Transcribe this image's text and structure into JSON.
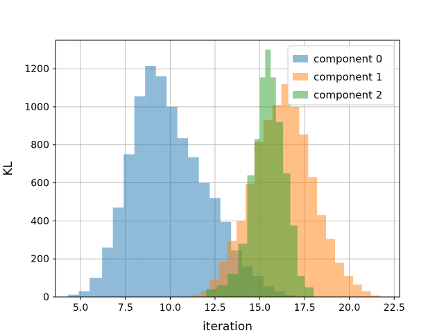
{
  "chart_data": {
    "type": "histogram",
    "xlabel": "iteration",
    "ylabel": "KL",
    "xlim": [
      3.6,
      22.8
    ],
    "ylim": [
      0,
      1350
    ],
    "xticks": [
      5.0,
      7.5,
      10.0,
      12.5,
      15.0,
      17.5,
      20.0,
      22.5
    ],
    "xtick_labels": [
      "5.0",
      "7.5",
      "10.0",
      "12.5",
      "15.0",
      "17.5",
      "20.0",
      "22.5"
    ],
    "yticks": [
      0,
      200,
      400,
      600,
      800,
      1000,
      1200
    ],
    "ytick_labels": [
      "0",
      "200",
      "400",
      "600",
      "800",
      "1000",
      "1200"
    ],
    "grid": true,
    "legend_position": "top-right",
    "series": [
      {
        "name": "component 0",
        "color": "#1f77b4",
        "bins": [
          4.3,
          4.9,
          5.5,
          6.2,
          6.8,
          7.4,
          8.0,
          8.6,
          9.2,
          9.8,
          10.4,
          11.0,
          11.6,
          12.2,
          12.8,
          13.4,
          14.0,
          14.6,
          15.2,
          15.8,
          16.4,
          17.0
        ],
        "counts": [
          12,
          30,
          100,
          260,
          470,
          750,
          1055,
          1215,
          1160,
          1000,
          835,
          735,
          600,
          520,
          395,
          245,
          160,
          110,
          55,
          30,
          10
        ]
      },
      {
        "name": "component 1",
        "color": "#ff7f0e",
        "bins": [
          11.2,
          11.7,
          12.2,
          12.7,
          13.2,
          13.7,
          14.2,
          14.7,
          15.2,
          15.7,
          16.2,
          16.7,
          17.2,
          17.7,
          18.2,
          18.7,
          19.2,
          19.7,
          20.2,
          20.7,
          21.2,
          21.7
        ],
        "counts": [
          10,
          30,
          90,
          185,
          295,
          400,
          595,
          815,
          930,
          1010,
          1120,
          1000,
          855,
          630,
          430,
          305,
          180,
          110,
          65,
          30,
          8
        ]
      },
      {
        "name": "component 2",
        "color": "#2ca02c",
        "bins": [
          12.0,
          12.6,
          13.2,
          13.8,
          14.3,
          14.7,
          15.0,
          15.3,
          15.6,
          15.9,
          16.3,
          16.7,
          17.1,
          17.5,
          18.0
        ],
        "counts": [
          40,
          60,
          120,
          280,
          640,
          830,
          1155,
          1300,
          1155,
          920,
          650,
          375,
          110,
          50
        ]
      }
    ]
  }
}
